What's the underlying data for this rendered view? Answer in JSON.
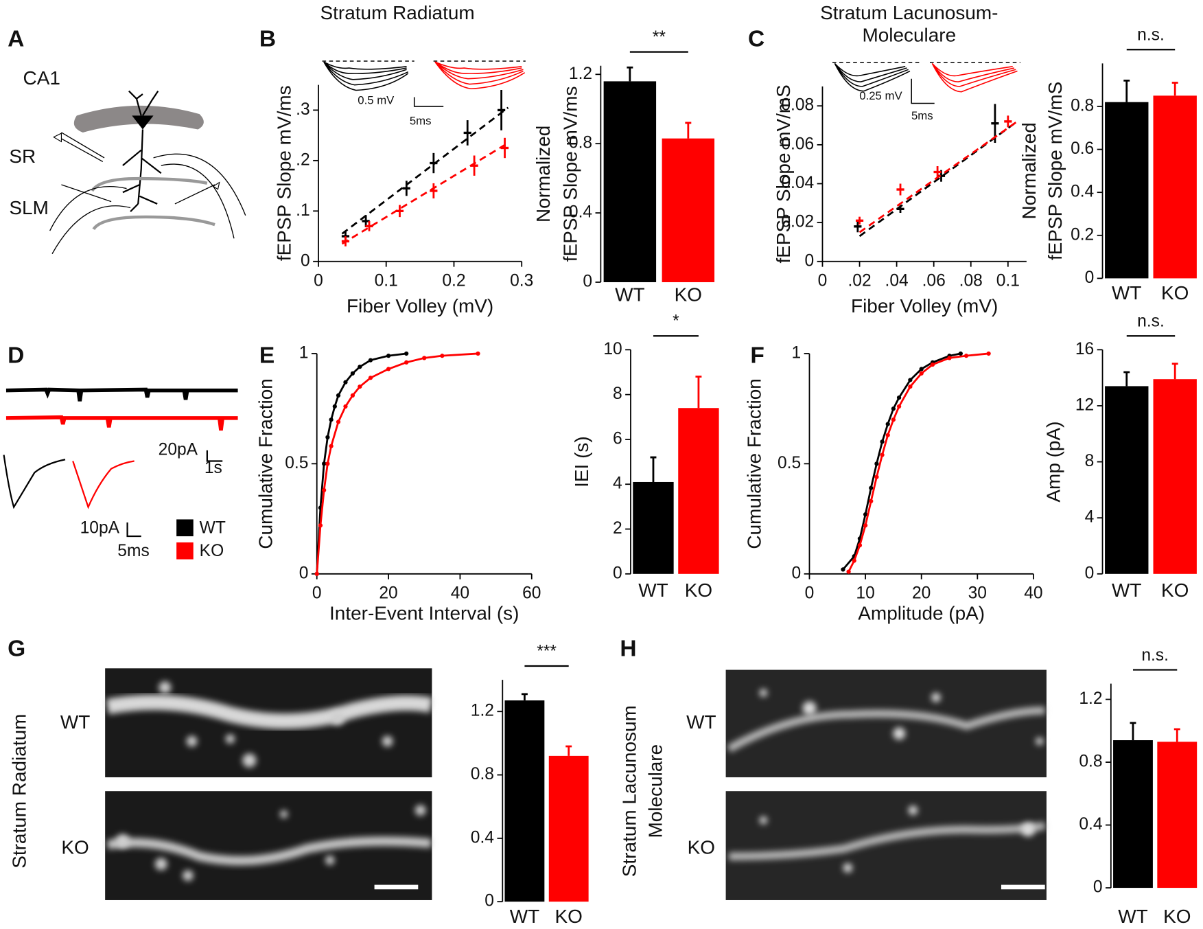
{
  "figure": {
    "panel_labels": [
      "A",
      "B",
      "C",
      "D",
      "E",
      "F",
      "G",
      "H"
    ],
    "titles": [
      "Stratum Radiatum",
      "Stratum Lacunosum-",
      "Moleculare"
    ],
    "diagram": {
      "region": "CA1",
      "layers": [
        "SR",
        "SLM"
      ]
    },
    "scale_labels": [
      "0.5 mV",
      "5ms",
      "0.25 mV",
      "5ms",
      "20pA",
      "1s",
      "10pA",
      "5ms"
    ],
    "legend": [
      {
        "name": "WT",
        "color": "#000000"
      },
      {
        "name": "KO",
        "color": "#ff0000"
      }
    ],
    "image_rows": [
      "WT",
      "KO",
      "WT",
      "KO"
    ],
    "image_side_labels": [
      "Stratum Radiatum",
      "Stratum Lacunosum",
      "Moleculare"
    ]
  },
  "chart_data": [
    {
      "type": "scatter",
      "xlabel": "Fiber Volley (mV)",
      "ylabel": [
        "fEPSP Slope mV/ms"
      ],
      "xlim": [
        0,
        0.3
      ],
      "ylim": [
        0,
        0.35
      ],
      "xticks": [
        0,
        0.1,
        0.2,
        0.3
      ],
      "yticks": [
        0,
        {
          "value": 0.1,
          "label": ".1"
        },
        {
          "value": 0.2,
          "label": ".2"
        },
        {
          "value": 0.3,
          "label": ".3"
        }
      ],
      "series": [
        {
          "name": "WT",
          "color": "#000000",
          "x": [
            0.04,
            0.07,
            0.13,
            0.17,
            0.22,
            0.27
          ],
          "values": [
            0.05,
            0.08,
            0.145,
            0.195,
            0.255,
            0.3
          ],
          "errors": [
            0.01,
            0.012,
            0.015,
            0.02,
            0.025,
            0.04
          ],
          "fit": {
            "x": [
              0.035,
              0.28
            ],
            "values": [
              0.055,
              0.305
            ]
          }
        },
        {
          "name": "KO",
          "color": "#ff0000",
          "x": [
            0.04,
            0.075,
            0.12,
            0.17,
            0.23,
            0.275
          ],
          "values": [
            0.04,
            0.07,
            0.1,
            0.14,
            0.19,
            0.225
          ],
          "errors": [
            0.01,
            0.01,
            0.012,
            0.015,
            0.02,
            0.02
          ],
          "fit": {
            "x": [
              0.035,
              0.28
            ],
            "values": [
              0.035,
              0.235
            ]
          }
        }
      ]
    },
    {
      "type": "bar",
      "ylabel": [
        "Normalized",
        "fEPSP Slope mV/ms"
      ],
      "categories": [
        "WT",
        "KO"
      ],
      "values": [
        1.16,
        0.83
      ],
      "errors": [
        0.08,
        0.09
      ],
      "colors": [
        "#000000",
        "#ff0000"
      ],
      "ylim": [
        0,
        1.25
      ],
      "yticks": [
        0,
        0.4,
        0.8,
        1.2
      ],
      "annotation": "**"
    },
    {
      "type": "scatter",
      "xlabel": "Fiber Volley (mV)",
      "ylabel": [
        "fEPSP Slope mV/mS"
      ],
      "xlim": [
        0,
        0.11
      ],
      "ylim": [
        0,
        0.09
      ],
      "xticks": [
        0,
        {
          "value": 0.02,
          "label": ".02"
        },
        {
          "value": 0.04,
          "label": ".04"
        },
        {
          "value": 0.06,
          "label": ".06"
        },
        {
          "value": 0.08,
          "label": ".08"
        },
        {
          "value": 0.1,
          "label": "0.1"
        }
      ],
      "yticks": [
        0,
        0.02,
        0.04,
        0.06,
        0.08
      ],
      "series": [
        {
          "name": "WT",
          "color": "#000000",
          "x": [
            0.019,
            0.042,
            0.064,
            0.093
          ],
          "values": [
            0.018,
            0.027,
            0.044,
            0.071
          ],
          "errors": [
            0.003,
            0.002,
            0.003,
            0.01
          ],
          "fit": {
            "x": [
              0.02,
              0.105
            ],
            "values": [
              0.013,
              0.072
            ]
          }
        },
        {
          "name": "KO",
          "color": "#ff0000",
          "x": [
            0.02,
            0.042,
            0.062,
            0.1
          ],
          "values": [
            0.021,
            0.037,
            0.046,
            0.072
          ],
          "errors": [
            0.002,
            0.003,
            0.003,
            0.003
          ],
          "fit": {
            "x": [
              0.02,
              0.105
            ],
            "values": [
              0.015,
              0.072
            ]
          }
        }
      ]
    },
    {
      "type": "bar",
      "ylabel": [
        "Normalized",
        "fEPSP Slope mV/mS"
      ],
      "categories": [
        "WT",
        "KO"
      ],
      "values": [
        0.82,
        0.85
      ],
      "errors": [
        0.1,
        0.06
      ],
      "colors": [
        "#000000",
        "#ff0000"
      ],
      "ylim": [
        0,
        1.0
      ],
      "yticks": [
        0,
        0.2,
        0.4,
        0.6,
        0.8
      ],
      "annotation": "n.s."
    },
    {
      "type": "line",
      "xlabel": "Inter-Event Interval (s)",
      "ylabel": [
        "Cumulative Fraction"
      ],
      "xlim": [
        0,
        60
      ],
      "ylim": [
        0,
        1
      ],
      "xticks": [
        0,
        20,
        40,
        60
      ],
      "yticks": [
        0,
        0.5,
        1
      ],
      "series": [
        {
          "name": "WT",
          "color": "#000000",
          "x": [
            0,
            1,
            2,
            3,
            4,
            5,
            6,
            8,
            10,
            12,
            15,
            20,
            25
          ],
          "values": [
            0,
            0.3,
            0.5,
            0.62,
            0.7,
            0.76,
            0.81,
            0.87,
            0.91,
            0.94,
            0.97,
            0.99,
            1.0
          ]
        },
        {
          "name": "KO",
          "color": "#ff0000",
          "x": [
            0,
            1,
            2,
            3,
            4,
            6,
            8,
            10,
            12,
            15,
            20,
            25,
            30,
            35,
            45
          ],
          "values": [
            0,
            0.22,
            0.38,
            0.5,
            0.58,
            0.69,
            0.76,
            0.81,
            0.85,
            0.89,
            0.93,
            0.96,
            0.98,
            0.99,
            1.0
          ]
        }
      ]
    },
    {
      "type": "bar",
      "ylabel": [
        "IEI (s)"
      ],
      "categories": [
        "WT",
        "KO"
      ],
      "values": [
        4.1,
        7.4
      ],
      "errors": [
        1.1,
        1.4
      ],
      "colors": [
        "#000000",
        "#ff0000"
      ],
      "ylim": [
        0,
        10
      ],
      "yticks": [
        0,
        2,
        4,
        6,
        8,
        10
      ],
      "annotation": "*"
    },
    {
      "type": "line",
      "xlabel": "Amplitude (pA)",
      "ylabel": [
        "Cumulative Fraction"
      ],
      "xlim": [
        0,
        40
      ],
      "ylim": [
        0,
        1
      ],
      "xticks": [
        0,
        10,
        20,
        30,
        40
      ],
      "yticks": [
        0,
        0.5,
        1
      ],
      "series": [
        {
          "name": "WT",
          "color": "#000000",
          "x": [
            6,
            8,
            9,
            10,
            11,
            12,
            13,
            14,
            15,
            16,
            18,
            20,
            22,
            25,
            27
          ],
          "values": [
            0.02,
            0.08,
            0.16,
            0.27,
            0.39,
            0.5,
            0.6,
            0.68,
            0.75,
            0.8,
            0.88,
            0.93,
            0.96,
            0.99,
            1.0
          ]
        },
        {
          "name": "KO",
          "color": "#ff0000",
          "x": [
            7,
            8,
            9,
            10,
            11,
            12,
            13,
            14,
            15,
            16,
            18,
            20,
            22,
            25,
            28,
            32
          ],
          "values": [
            0.01,
            0.06,
            0.13,
            0.22,
            0.33,
            0.44,
            0.54,
            0.63,
            0.7,
            0.76,
            0.85,
            0.91,
            0.95,
            0.98,
            0.99,
            1.0
          ]
        }
      ]
    },
    {
      "type": "bar",
      "ylabel": [
        "Amp (pA)"
      ],
      "categories": [
        "WT",
        "KO"
      ],
      "values": [
        13.4,
        13.9
      ],
      "errors": [
        1.0,
        1.1
      ],
      "colors": [
        "#000000",
        "#ff0000"
      ],
      "ylim": [
        0,
        16
      ],
      "yticks": [
        0,
        4,
        8,
        12,
        16
      ],
      "annotation": "n.s."
    },
    {
      "type": "bar",
      "categories": [
        "WT",
        "KO"
      ],
      "values": [
        1.27,
        0.92
      ],
      "errors": [
        0.04,
        0.06
      ],
      "colors": [
        "#000000",
        "#ff0000"
      ],
      "ylim": [
        0,
        1.4
      ],
      "yticks": [
        0,
        0.4,
        0.8,
        1.2
      ],
      "annotation": "***"
    },
    {
      "type": "bar",
      "categories": [
        "WT",
        "KO"
      ],
      "values": [
        0.94,
        0.93
      ],
      "errors": [
        0.11,
        0.08
      ],
      "colors": [
        "#000000",
        "#ff0000"
      ],
      "ylim": [
        0,
        1.3
      ],
      "yticks": [
        0,
        0.4,
        0.8,
        1.2
      ],
      "annotation": "n.s."
    }
  ]
}
